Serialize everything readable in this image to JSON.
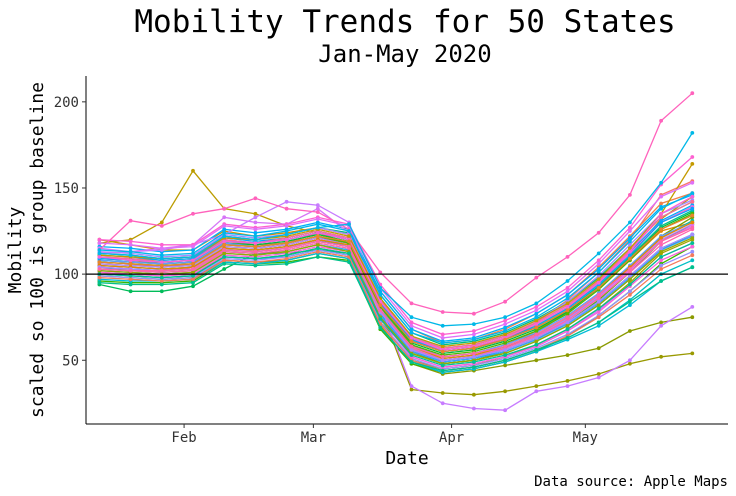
{
  "chart_data": {
    "type": "line",
    "title": "Mobility Trends for 50 States",
    "subtitle": "Jan-May 2020",
    "xlabel": "Date",
    "ylabel": "Mobility",
    "ylabel_sub": "scaled so 100 is group baseline",
    "caption": "Data source: Apple Maps",
    "x_ticks": [
      "Feb",
      "Mar",
      "Apr",
      "May"
    ],
    "x_tick_dates": [
      "2020-02-01",
      "2020-03-01",
      "2020-04-01",
      "2020-05-01"
    ],
    "y_ticks": [
      50,
      100,
      150,
      200
    ],
    "xlim": [
      "2020-01-10",
      "2020-06-02"
    ],
    "ylim": [
      13,
      215
    ],
    "reference_line": 100,
    "legend": "none",
    "grid": false,
    "dates": [
      "2020-01-13",
      "2020-01-20",
      "2020-01-27",
      "2020-02-03",
      "2020-02-10",
      "2020-02-17",
      "2020-02-24",
      "2020-03-02",
      "2020-03-09",
      "2020-03-16",
      "2020-03-23",
      "2020-03-30",
      "2020-04-06",
      "2020-04-13",
      "2020-04-20",
      "2020-04-27",
      "2020-05-04",
      "2020-05-11",
      "2020-05-18",
      "2020-05-25"
    ],
    "series": [
      {
        "color": "#F8766D",
        "values": [
          107,
          106,
          104,
          106,
          119,
          117,
          118,
          124,
          120,
          85,
          62,
          55,
          57,
          63,
          72,
          85,
          101,
          120,
          146,
          154
        ]
      },
      {
        "color": "#F0824B",
        "values": [
          110,
          109,
          108,
          109,
          120,
          118,
          121,
          125,
          121,
          90,
          68,
          60,
          62,
          68,
          77,
          88,
          104,
          122,
          141,
          147
        ]
      },
      {
        "color": "#E38900",
        "values": [
          104,
          103,
          102,
          104,
          115,
          114,
          116,
          120,
          117,
          80,
          58,
          52,
          54,
          59,
          67,
          79,
          92,
          108,
          125,
          130
        ]
      },
      {
        "color": "#D29200",
        "values": [
          120,
          117,
          114,
          114,
          125,
          122,
          124,
          127,
          123,
          84,
          62,
          56,
          58,
          63,
          70,
          80,
          95,
          112,
          130,
          139
        ]
      },
      {
        "color": "#BB9C00",
        "values": [
          118,
          120,
          130,
          160,
          138,
          135,
          128,
          124,
          118,
          72,
          55,
          50,
          52,
          57,
          66,
          78,
          92,
          110,
          132,
          145
        ]
      },
      {
        "color": "#A3A500",
        "values": [
          101,
          100,
          99,
          100,
          110,
          109,
          111,
          115,
          112,
          72,
          50,
          45,
          47,
          52,
          59,
          68,
          80,
          95,
          112,
          120
        ]
      },
      {
        "color": "#999900",
        "values": [
          110,
          108,
          106,
          107,
          118,
          116,
          118,
          122,
          118,
          80,
          33,
          31,
          30,
          32,
          35,
          38,
          42,
          48,
          52,
          54
        ]
      },
      {
        "color": "#8A9A00",
        "values": [
          99,
          98,
          97,
          98,
          108,
          107,
          108,
          112,
          109,
          70,
          48,
          42,
          44,
          47,
          50,
          53,
          57,
          67,
          72,
          75
        ]
      },
      {
        "color": "#7AA000",
        "values": [
          106,
          105,
          104,
          105,
          116,
          115,
          117,
          121,
          118,
          78,
          57,
          50,
          52,
          57,
          64,
          74,
          87,
          104,
          122,
          133
        ]
      },
      {
        "color": "#5BB300",
        "values": [
          103,
          102,
          101,
          102,
          113,
          112,
          113,
          117,
          114,
          75,
          55,
          48,
          50,
          55,
          62,
          72,
          85,
          101,
          119,
          129
        ]
      },
      {
        "color": "#39B600",
        "values": [
          96,
          95,
          95,
          96,
          107,
          106,
          107,
          110,
          108,
          68,
          48,
          43,
          45,
          49,
          55,
          64,
          76,
          90,
          106,
          116
        ]
      },
      {
        "color": "#00BA38",
        "values": [
          108,
          107,
          106,
          107,
          118,
          117,
          119,
          123,
          119,
          82,
          60,
          54,
          56,
          61,
          68,
          78,
          92,
          109,
          127,
          136
        ]
      },
      {
        "color": "#00BC59",
        "values": [
          94,
          90,
          90,
          93,
          103,
          112,
          112,
          114,
          112,
          76,
          54,
          48,
          50,
          54,
          61,
          70,
          82,
          97,
          114,
          123
        ]
      },
      {
        "color": "#00BF7D",
        "values": [
          112,
          111,
          109,
          110,
          122,
          120,
          123,
          127,
          124,
          88,
          66,
          59,
          61,
          66,
          74,
          84,
          98,
          115,
          133,
          142
        ]
      },
      {
        "color": "#00C08B",
        "values": [
          109,
          108,
          107,
          108,
          119,
          118,
          120,
          124,
          120,
          83,
          61,
          55,
          57,
          62,
          69,
          79,
          93,
          110,
          128,
          137
        ]
      },
      {
        "color": "#00C1A3",
        "values": [
          103,
          103,
          102,
          103,
          114,
          113,
          115,
          119,
          116,
          79,
          57,
          51,
          53,
          58,
          65,
          75,
          88,
          104,
          121,
          131
        ]
      },
      {
        "color": "#00BFC4",
        "values": [
          100,
          99,
          98,
          99,
          110,
          109,
          110,
          114,
          111,
          72,
          50,
          44,
          46,
          50,
          56,
          63,
          72,
          85,
          100,
          108
        ]
      },
      {
        "color": "#00BCD8",
        "values": [
          97,
          96,
          96,
          97,
          107,
          106,
          108,
          112,
          109,
          69,
          49,
          43,
          45,
          49,
          55,
          62,
          70,
          82,
          96,
          104
        ]
      },
      {
        "color": "#00B4EF",
        "values": [
          105,
          104,
          103,
          104,
          115,
          114,
          116,
          120,
          116,
          77,
          56,
          49,
          51,
          56,
          63,
          72,
          84,
          99,
          115,
          123
        ]
      },
      {
        "color": "#00B0F6",
        "values": [
          116,
          115,
          113,
          114,
          126,
          124,
          126,
          130,
          126,
          90,
          68,
          61,
          63,
          69,
          77,
          88,
          103,
          121,
          139,
          146
        ]
      },
      {
        "color": "#00A9FF",
        "values": [
          111,
          110,
          108,
          109,
          121,
          119,
          121,
          125,
          121,
          86,
          64,
          57,
          59,
          64,
          72,
          82,
          96,
          113,
          131,
          140
        ]
      },
      {
        "color": "#35A2FF",
        "values": [
          102,
          101,
          100,
          101,
          112,
          111,
          113,
          117,
          114,
          76,
          55,
          49,
          51,
          55,
          62,
          71,
          83,
          98,
          114,
          122
        ]
      },
      {
        "color": "#619CFF",
        "values": [
          108,
          107,
          106,
          107,
          118,
          116,
          118,
          122,
          118,
          80,
          59,
          52,
          54,
          59,
          66,
          76,
          89,
          105,
          122,
          130
        ]
      },
      {
        "color": "#9590FF",
        "values": [
          99,
          98,
          97,
          98,
          109,
          108,
          110,
          114,
          111,
          72,
          51,
          45,
          47,
          51,
          57,
          65,
          76,
          90,
          105,
          113
        ]
      },
      {
        "color": "#A58AFF",
        "values": [
          113,
          112,
          110,
          111,
          123,
          121,
          123,
          127,
          123,
          86,
          64,
          57,
          59,
          65,
          73,
          84,
          99,
          117,
          135,
          143
        ]
      },
      {
        "color": "#B983FF",
        "values": [
          106,
          105,
          104,
          105,
          116,
          115,
          117,
          121,
          117,
          79,
          57,
          51,
          53,
          57,
          64,
          74,
          87,
          103,
          120,
          129
        ]
      },
      {
        "color": "#C77CFF",
        "values": [
          112,
          113,
          114,
          117,
          123,
          133,
          142,
          140,
          130,
          82,
          35,
          25,
          22,
          21,
          32,
          35,
          40,
          50,
          70,
          81
        ]
      },
      {
        "color": "#D675F7",
        "values": [
          115,
          113,
          115,
          117,
          133,
          130,
          129,
          138,
          124,
          75,
          52,
          46,
          48,
          52,
          58,
          67,
          79,
          94,
          110,
          118
        ]
      },
      {
        "color": "#E76BF3",
        "values": [
          104,
          103,
          102,
          103,
          114,
          113,
          115,
          119,
          116,
          78,
          56,
          50,
          52,
          56,
          63,
          73,
          86,
          102,
          119,
          128
        ]
      },
      {
        "color": "#F564E3",
        "values": [
          109,
          108,
          107,
          108,
          120,
          118,
          120,
          124,
          121,
          84,
          62,
          56,
          58,
          63,
          71,
          81,
          95,
          112,
          130,
          139
        ]
      },
      {
        "color": "#FA62DB",
        "values": [
          101,
          100,
          99,
          100,
          111,
          110,
          112,
          116,
          113,
          74,
          52,
          46,
          48,
          52,
          58,
          67,
          78,
          93,
          108,
          116
        ]
      },
      {
        "color": "#FD61D1",
        "values": [
          120,
          119,
          117,
          117,
          129,
          127,
          129,
          133,
          129,
          94,
          72,
          65,
          67,
          73,
          81,
          92,
          108,
          127,
          152,
          168
        ]
      },
      {
        "color": "#FF62BC",
        "values": [
          114,
          131,
          128,
          135,
          138,
          144,
          138,
          136,
          126,
          101,
          83,
          78,
          77,
          84,
          98,
          110,
          124,
          146,
          189,
          205
        ]
      },
      {
        "color": "#FF65AE",
        "values": [
          103,
          102,
          101,
          102,
          113,
          112,
          114,
          118,
          115,
          78,
          57,
          50,
          52,
          57,
          64,
          73,
          86,
          101,
          117,
          126
        ]
      },
      {
        "color": "#FF6C91",
        "values": [
          110,
          109,
          107,
          108,
          120,
          118,
          121,
          125,
          121,
          85,
          63,
          57,
          59,
          64,
          72,
          82,
          96,
          114,
          133,
          142
        ]
      },
      {
        "color": "#F47A5B",
        "values": [
          98,
          97,
          96,
          97,
          108,
          107,
          109,
          113,
          110,
          71,
          50,
          44,
          46,
          50,
          56,
          64,
          75,
          88,
          103,
          111
        ]
      },
      {
        "color": "#E58700",
        "values": [
          105,
          104,
          103,
          104,
          115,
          114,
          116,
          120,
          117,
          79,
          58,
          51,
          53,
          58,
          65,
          75,
          88,
          104,
          121,
          130
        ]
      },
      {
        "color": "#C49A00",
        "values": [
          111,
          110,
          109,
          110,
          121,
          120,
          122,
          126,
          122,
          86,
          64,
          58,
          60,
          65,
          73,
          83,
          97,
          115,
          135,
          164
        ]
      },
      {
        "color": "#99A800",
        "values": [
          102,
          101,
          100,
          101,
          112,
          111,
          113,
          117,
          113,
          75,
          54,
          48,
          50,
          54,
          61,
          70,
          82,
          97,
          113,
          121
        ]
      },
      {
        "color": "#53B400",
        "values": [
          107,
          106,
          105,
          106,
          117,
          116,
          118,
          122,
          118,
          81,
          59,
          53,
          55,
          60,
          67,
          77,
          91,
          108,
          126,
          135
        ]
      },
      {
        "color": "#00C094",
        "values": [
          100,
          99,
          98,
          99,
          110,
          109,
          111,
          115,
          112,
          74,
          53,
          47,
          49,
          53,
          59,
          68,
          80,
          94,
          110,
          118
        ]
      },
      {
        "color": "#00B6EB",
        "values": [
          114,
          113,
          111,
          112,
          124,
          122,
          125,
          129,
          125,
          88,
          66,
          60,
          62,
          67,
          75,
          86,
          101,
          119,
          138,
          147
        ]
      },
      {
        "color": "#06A4FF",
        "values": [
          109,
          108,
          107,
          108,
          119,
          118,
          120,
          124,
          120,
          83,
          62,
          55,
          57,
          62,
          70,
          80,
          94,
          111,
          130,
          138
        ]
      },
      {
        "color": "#A58AFF",
        "values": [
          104,
          103,
          102,
          103,
          114,
          113,
          115,
          119,
          116,
          78,
          56,
          50,
          52,
          56,
          63,
          72,
          84,
          99,
          115,
          123
        ]
      },
      {
        "color": "#DF70F8",
        "values": [
          118,
          117,
          115,
          116,
          128,
          126,
          128,
          132,
          128,
          92,
          70,
          63,
          65,
          71,
          79,
          90,
          106,
          125,
          145,
          153
        ]
      },
      {
        "color": "#FB61D7",
        "values": [
          110,
          108,
          107,
          108,
          119,
          118,
          120,
          124,
          120,
          84,
          63,
          56,
          58,
          63,
          71,
          81,
          95,
          113,
          135,
          145
        ]
      },
      {
        "color": "#FF66A8",
        "values": [
          103,
          102,
          102,
          103,
          114,
          113,
          115,
          119,
          116,
          79,
          58,
          52,
          54,
          58,
          65,
          75,
          88,
          103,
          119,
          127
        ]
      },
      {
        "color": "#E9842C",
        "values": [
          107,
          106,
          105,
          106,
          117,
          116,
          118,
          122,
          119,
          82,
          61,
          55,
          57,
          62,
          69,
          79,
          92,
          109,
          126,
          134
        ]
      },
      {
        "color": "#00C08B",
        "values": [
          95,
          94,
          94,
          95,
          106,
          105,
          106,
          110,
          107,
          69,
          49,
          44,
          46,
          50,
          56,
          63,
          72,
          84,
          96,
          104
        ]
      },
      {
        "color": "#00B8E7",
        "values": [
          112,
          111,
          109,
          110,
          122,
          120,
          123,
          127,
          129,
          92,
          75,
          70,
          71,
          75,
          83,
          96,
          112,
          130,
          153,
          182
        ]
      }
    ]
  }
}
